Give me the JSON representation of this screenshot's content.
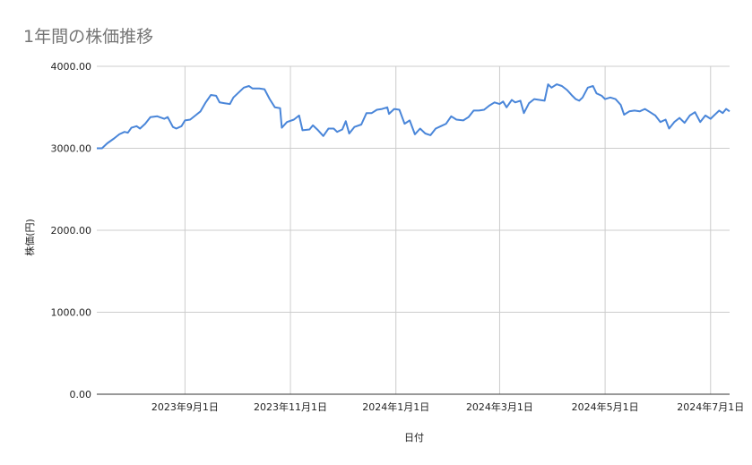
{
  "chart_data": {
    "type": "line",
    "title": "1年間の株価推移",
    "xlabel": "日付",
    "ylabel": "株価(円)",
    "ylim": [
      0,
      4000
    ],
    "yticks": [
      "0.00",
      "1000.00",
      "2000.00",
      "3000.00",
      "4000.00"
    ],
    "x_axis": {
      "start": "2023-07-12",
      "end": "2024-07-12",
      "ticks": [
        {
          "date": "2023-09-01",
          "label": "2023年9月1日"
        },
        {
          "date": "2023-11-01",
          "label": "2023年11月1日"
        },
        {
          "date": "2024-01-01",
          "label": "2024年1月1日"
        },
        {
          "date": "2024-03-01",
          "label": "2024年3月1日"
        },
        {
          "date": "2024-05-01",
          "label": "2024年5月1日"
        },
        {
          "date": "2024-07-01",
          "label": "2024年7月1日"
        }
      ]
    },
    "grid": true,
    "legend": "none",
    "colors": {
      "line": "#4a86d9",
      "grid": "#cccccc",
      "axis": "#333333",
      "title": "#757575"
    },
    "series": [
      {
        "points": [
          [
            "2023-07-12",
            3000
          ],
          [
            "2023-07-15",
            3000
          ],
          [
            "2023-07-18",
            3060
          ],
          [
            "2023-07-22",
            3120
          ],
          [
            "2023-07-25",
            3170
          ],
          [
            "2023-07-28",
            3200
          ],
          [
            "2023-07-30",
            3190
          ],
          [
            "2023-08-01",
            3250
          ],
          [
            "2023-08-04",
            3270
          ],
          [
            "2023-08-06",
            3240
          ],
          [
            "2023-08-09",
            3300
          ],
          [
            "2023-08-12",
            3380
          ],
          [
            "2023-08-16",
            3390
          ],
          [
            "2023-08-20",
            3360
          ],
          [
            "2023-08-22",
            3380
          ],
          [
            "2023-08-25",
            3260
          ],
          [
            "2023-08-27",
            3240
          ],
          [
            "2023-08-30",
            3270
          ],
          [
            "2023-09-01",
            3340
          ],
          [
            "2023-09-04",
            3350
          ],
          [
            "2023-09-07",
            3400
          ],
          [
            "2023-09-10",
            3450
          ],
          [
            "2023-09-13",
            3560
          ],
          [
            "2023-09-16",
            3650
          ],
          [
            "2023-09-19",
            3640
          ],
          [
            "2023-09-21",
            3560
          ],
          [
            "2023-09-24",
            3550
          ],
          [
            "2023-09-27",
            3540
          ],
          [
            "2023-09-29",
            3620
          ],
          [
            "2023-10-02",
            3680
          ],
          [
            "2023-10-05",
            3740
          ],
          [
            "2023-10-08",
            3760
          ],
          [
            "2023-10-10",
            3730
          ],
          [
            "2023-10-14",
            3730
          ],
          [
            "2023-10-17",
            3720
          ],
          [
            "2023-10-20",
            3600
          ],
          [
            "2023-10-23",
            3500
          ],
          [
            "2023-10-26",
            3490
          ],
          [
            "2023-10-27",
            3250
          ],
          [
            "2023-10-30",
            3320
          ],
          [
            "2023-11-03",
            3350
          ],
          [
            "2023-11-06",
            3400
          ],
          [
            "2023-11-08",
            3220
          ],
          [
            "2023-11-12",
            3230
          ],
          [
            "2023-11-14",
            3280
          ],
          [
            "2023-11-17",
            3220
          ],
          [
            "2023-11-20",
            3150
          ],
          [
            "2023-11-23",
            3240
          ],
          [
            "2023-11-26",
            3240
          ],
          [
            "2023-11-28",
            3200
          ],
          [
            "2023-12-01",
            3230
          ],
          [
            "2023-12-03",
            3330
          ],
          [
            "2023-12-05",
            3180
          ],
          [
            "2023-12-08",
            3260
          ],
          [
            "2023-12-12",
            3290
          ],
          [
            "2023-12-15",
            3430
          ],
          [
            "2023-12-18",
            3430
          ],
          [
            "2023-12-21",
            3470
          ],
          [
            "2023-12-24",
            3480
          ],
          [
            "2023-12-27",
            3500
          ],
          [
            "2023-12-28",
            3420
          ],
          [
            "2023-12-31",
            3480
          ],
          [
            "2024-01-03",
            3470
          ],
          [
            "2024-01-06",
            3300
          ],
          [
            "2024-01-09",
            3340
          ],
          [
            "2024-01-12",
            3170
          ],
          [
            "2024-01-15",
            3240
          ],
          [
            "2024-01-18",
            3180
          ],
          [
            "2024-01-21",
            3160
          ],
          [
            "2024-01-24",
            3240
          ],
          [
            "2024-01-27",
            3270
          ],
          [
            "2024-01-30",
            3300
          ],
          [
            "2024-02-02",
            3390
          ],
          [
            "2024-02-05",
            3350
          ],
          [
            "2024-02-09",
            3340
          ],
          [
            "2024-02-12",
            3380
          ],
          [
            "2024-02-15",
            3460
          ],
          [
            "2024-02-18",
            3460
          ],
          [
            "2024-02-21",
            3470
          ],
          [
            "2024-02-24",
            3520
          ],
          [
            "2024-02-27",
            3560
          ],
          [
            "2024-03-01",
            3540
          ],
          [
            "2024-03-03",
            3570
          ],
          [
            "2024-03-05",
            3500
          ],
          [
            "2024-03-08",
            3590
          ],
          [
            "2024-03-10",
            3560
          ],
          [
            "2024-03-13",
            3580
          ],
          [
            "2024-03-15",
            3430
          ],
          [
            "2024-03-18",
            3550
          ],
          [
            "2024-03-21",
            3600
          ],
          [
            "2024-03-24",
            3590
          ],
          [
            "2024-03-27",
            3580
          ],
          [
            "2024-03-29",
            3780
          ],
          [
            "2024-03-31",
            3740
          ],
          [
            "2024-04-03",
            3780
          ],
          [
            "2024-04-06",
            3760
          ],
          [
            "2024-04-09",
            3710
          ],
          [
            "2024-04-12",
            3640
          ],
          [
            "2024-04-14",
            3600
          ],
          [
            "2024-04-16",
            3580
          ],
          [
            "2024-04-18",
            3620
          ],
          [
            "2024-04-21",
            3740
          ],
          [
            "2024-04-24",
            3760
          ],
          [
            "2024-04-26",
            3670
          ],
          [
            "2024-04-29",
            3640
          ],
          [
            "2024-05-01",
            3600
          ],
          [
            "2024-05-04",
            3620
          ],
          [
            "2024-05-07",
            3600
          ],
          [
            "2024-05-10",
            3530
          ],
          [
            "2024-05-12",
            3410
          ],
          [
            "2024-05-15",
            3450
          ],
          [
            "2024-05-18",
            3460
          ],
          [
            "2024-05-21",
            3450
          ],
          [
            "2024-05-24",
            3480
          ],
          [
            "2024-05-27",
            3440
          ],
          [
            "2024-05-30",
            3400
          ],
          [
            "2024-06-02",
            3320
          ],
          [
            "2024-06-05",
            3350
          ],
          [
            "2024-06-07",
            3240
          ],
          [
            "2024-06-10",
            3320
          ],
          [
            "2024-06-13",
            3370
          ],
          [
            "2024-06-16",
            3310
          ],
          [
            "2024-06-19",
            3400
          ],
          [
            "2024-06-22",
            3440
          ],
          [
            "2024-06-25",
            3320
          ],
          [
            "2024-06-28",
            3400
          ],
          [
            "2024-07-01",
            3360
          ],
          [
            "2024-07-03",
            3400
          ],
          [
            "2024-07-06",
            3460
          ],
          [
            "2024-07-08",
            3430
          ],
          [
            "2024-07-10",
            3480
          ],
          [
            "2024-07-12",
            3450
          ]
        ]
      }
    ]
  }
}
